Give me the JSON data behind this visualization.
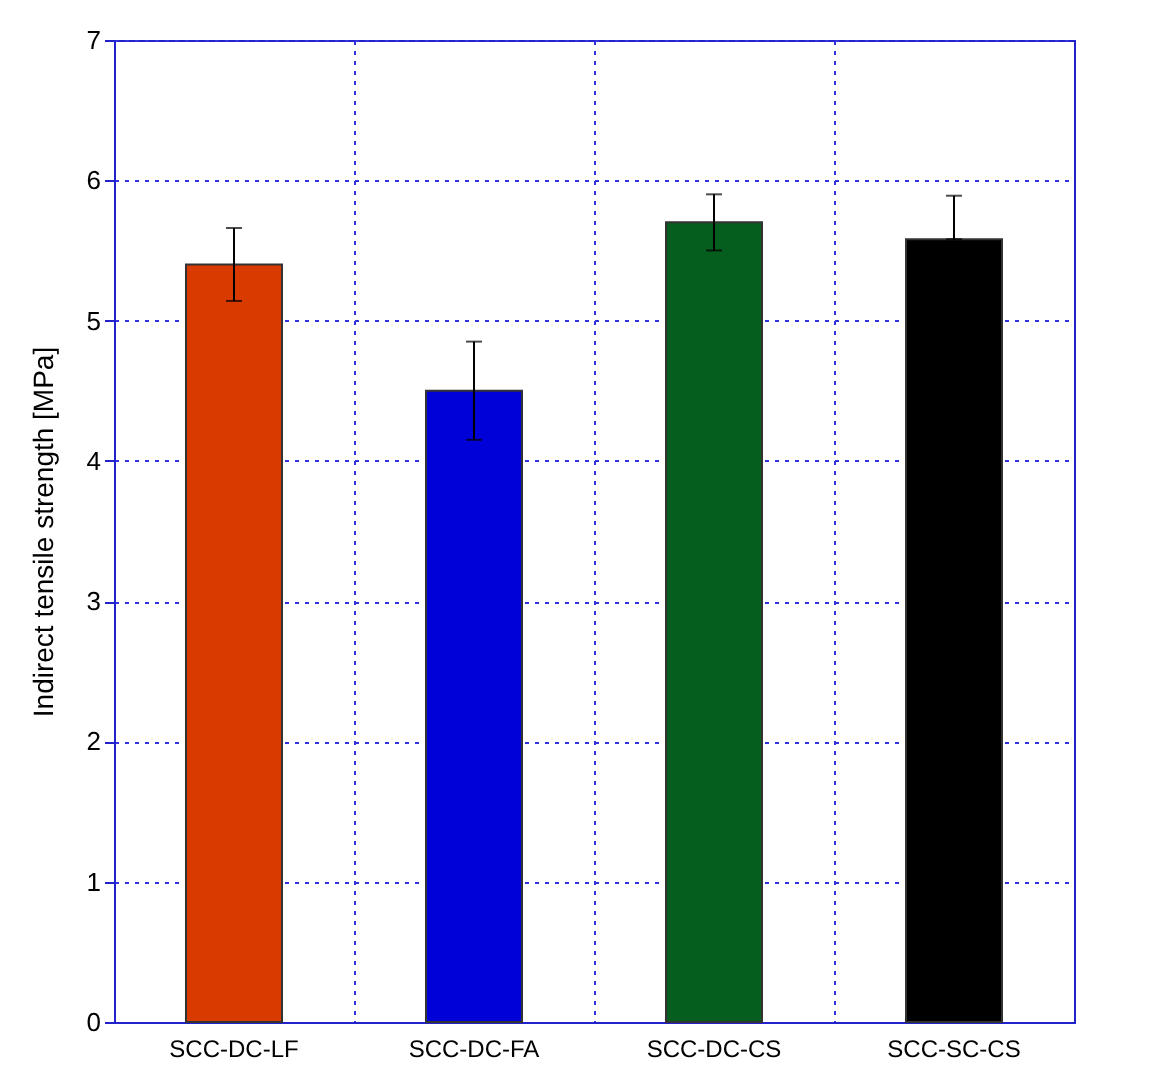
{
  "chart_data": {
    "type": "bar",
    "ylabel": "Indirect tensile strength [MPa]",
    "categories": [
      "SCC-DC-LF",
      "SCC-DC-FA",
      "SCC-DC-CS",
      "SCC-SC-CS"
    ],
    "values": [
      5.4,
      4.5,
      5.7,
      5.58
    ],
    "colors": [
      "#d83a00",
      "#0000d8",
      "#065e1e",
      "#000000"
    ],
    "errors": [
      [
        5.14,
        5.66
      ],
      [
        4.15,
        4.85
      ],
      [
        5.5,
        5.9
      ],
      [
        5.58,
        5.89
      ]
    ],
    "ylim": [
      0,
      7
    ],
    "yticks": [
      0,
      1,
      2,
      3,
      4,
      5,
      6,
      7
    ],
    "grid": true
  }
}
